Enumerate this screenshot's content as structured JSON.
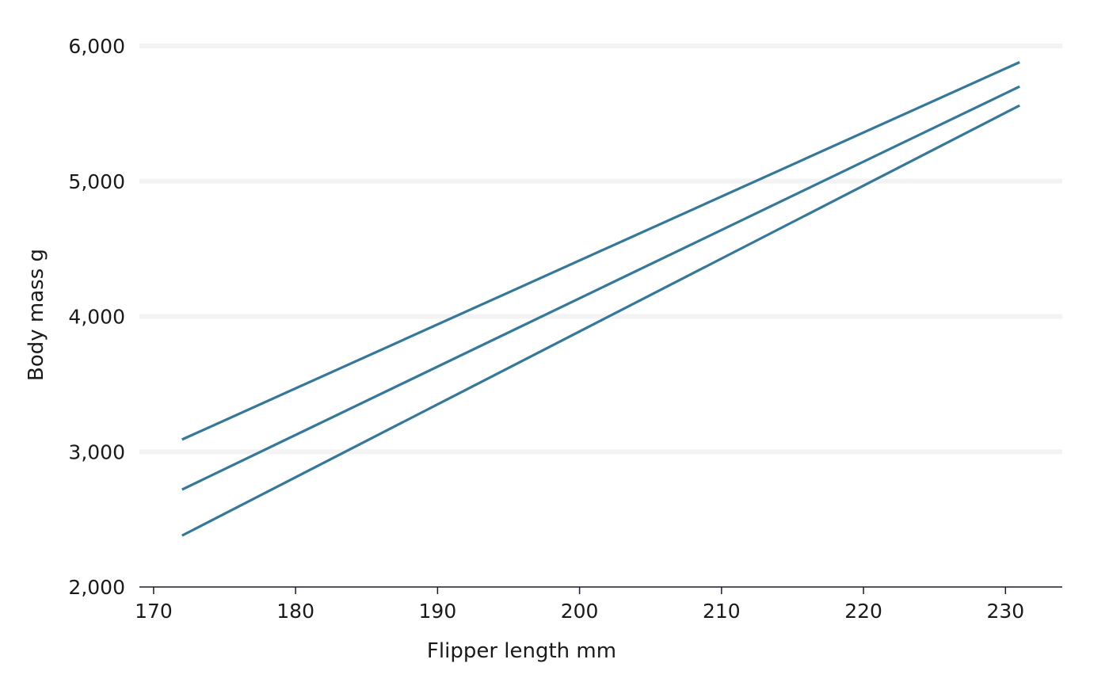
{
  "chart_data": {
    "type": "line",
    "title": "",
    "xlabel": "Flipper length mm",
    "ylabel": "Body mass g",
    "xlim": [
      169,
      234
    ],
    "ylim": [
      2000,
      6000
    ],
    "x_ticks": [
      170,
      180,
      190,
      200,
      210,
      220,
      230
    ],
    "y_ticks": [
      2000,
      3000,
      4000,
      5000,
      6000
    ],
    "y_tick_labels": [
      "2,000",
      "3,000",
      "4,000",
      "5,000",
      "6,000"
    ],
    "grid": "horizontal",
    "color": "#35789a",
    "series": [
      {
        "x": [
          172,
          231
        ],
        "values": [
          3090,
          5880
        ]
      },
      {
        "x": [
          172,
          231
        ],
        "values": [
          2720,
          5700
        ]
      },
      {
        "x": [
          172,
          231
        ],
        "values": [
          2380,
          5560
        ]
      }
    ]
  }
}
